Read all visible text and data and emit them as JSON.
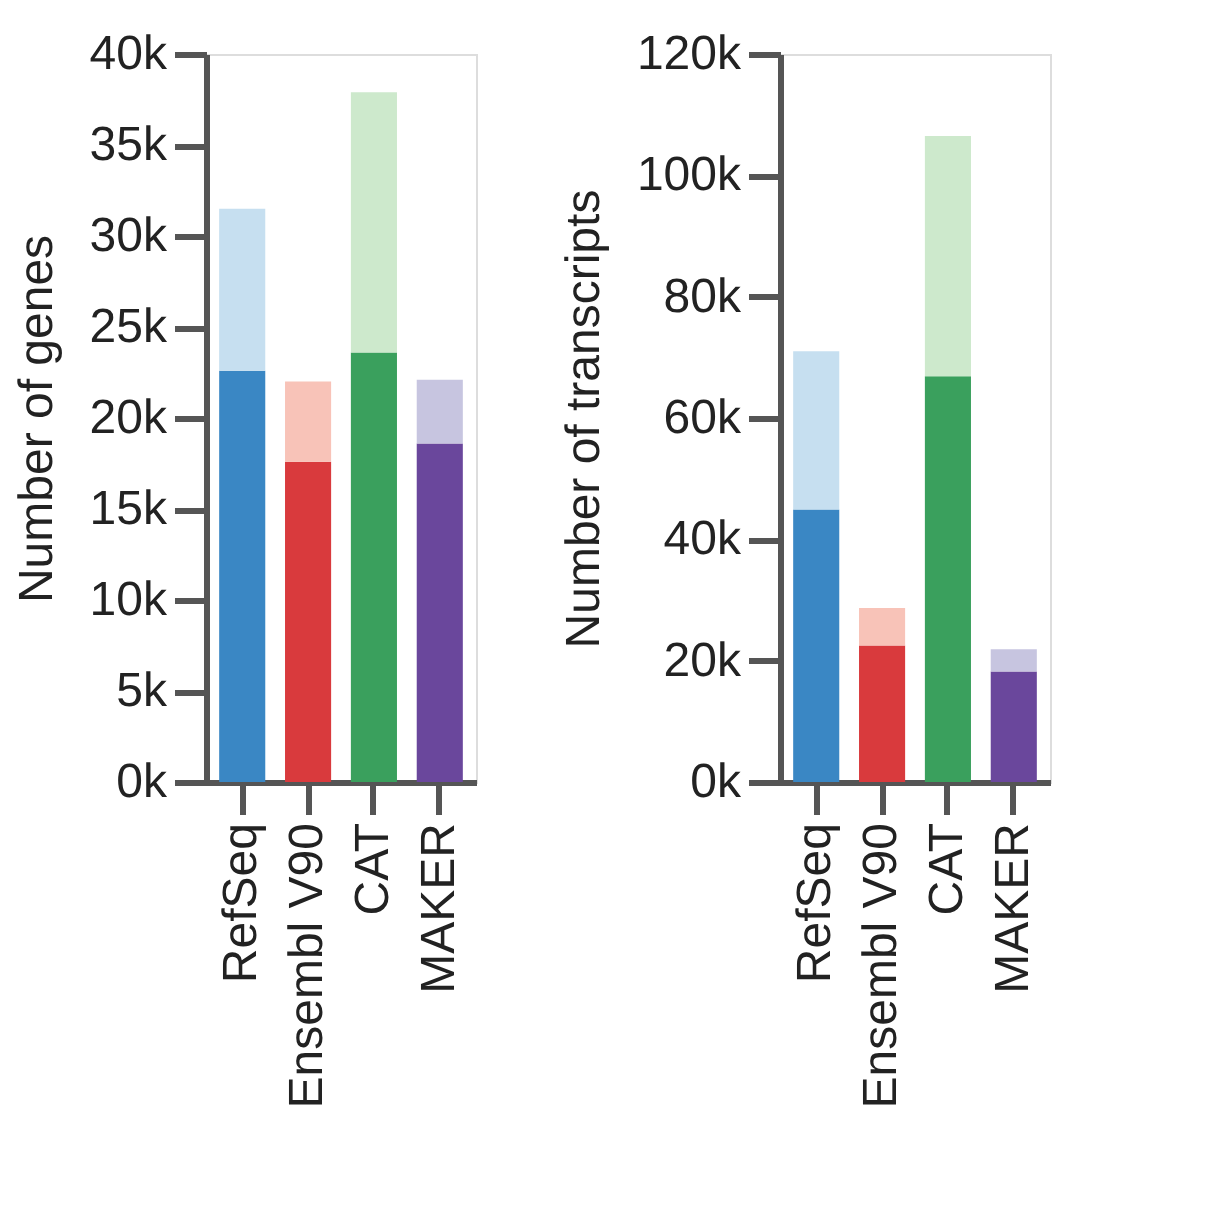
{
  "chart_data": [
    {
      "type": "bar",
      "stacked": true,
      "ylabel": "Number of genes",
      "categories": [
        "RefSeq",
        "Ensembl V90",
        "CAT",
        "MAKER"
      ],
      "series": [
        {
          "colors": [
            "#3a87c4",
            "#d93a3d",
            "#3aa05d",
            "#6a479c"
          ],
          "values": [
            22600,
            17600,
            23600,
            18600
          ]
        },
        {
          "colors": [
            "#c6dff0",
            "#f8c3b8",
            "#cde9cc",
            "#c7c5e0"
          ],
          "values": [
            8900,
            4400,
            14300,
            3500
          ]
        }
      ],
      "ylim": [
        0,
        40000
      ],
      "yticks": [
        {
          "value": 0,
          "label": "0k"
        },
        {
          "value": 5000,
          "label": "5k"
        },
        {
          "value": 10000,
          "label": "10k"
        },
        {
          "value": 15000,
          "label": "15k"
        },
        {
          "value": 20000,
          "label": "20k"
        },
        {
          "value": 25000,
          "label": "25k"
        },
        {
          "value": 30000,
          "label": "30k"
        },
        {
          "value": 35000,
          "label": "35k"
        },
        {
          "value": 40000,
          "label": "40k"
        }
      ],
      "grid": false
    },
    {
      "type": "bar",
      "stacked": true,
      "ylabel": "Number of transcripts",
      "categories": [
        "RefSeq",
        "Ensembl V90",
        "CAT",
        "MAKER"
      ],
      "series": [
        {
          "colors": [
            "#3a87c4",
            "#d93a3d",
            "#3aa05d",
            "#6a479c"
          ],
          "values": [
            44900,
            22500,
            66900,
            18200
          ]
        },
        {
          "colors": [
            "#c6dff0",
            "#f8c3b8",
            "#cde9cc",
            "#c7c5e0"
          ],
          "values": [
            26100,
            6200,
            39600,
            3700
          ]
        }
      ],
      "ylim": [
        0,
        120000
      ],
      "yticks": [
        {
          "value": 0,
          "label": "0k"
        },
        {
          "value": 20000,
          "label": "20k"
        },
        {
          "value": 40000,
          "label": "40k"
        },
        {
          "value": 60000,
          "label": "60k"
        },
        {
          "value": 80000,
          "label": "80k"
        },
        {
          "value": 100000,
          "label": "100k"
        },
        {
          "value": 120000,
          "label": "120k"
        }
      ],
      "grid": false
    }
  ]
}
